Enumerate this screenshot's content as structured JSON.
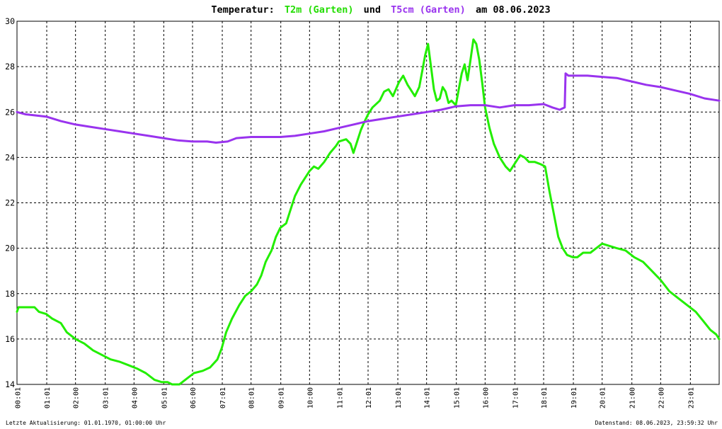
{
  "chart_data": {
    "type": "line",
    "title": {
      "prefix": "Temperatur:",
      "series1": "T2m (Garten)",
      "mid": "und",
      "series2": "T5cm (Garten)",
      "suffix": "am 08.06.2023"
    },
    "xlabel": "",
    "ylabel": "",
    "ylim": [
      14,
      30
    ],
    "xlim": [
      0,
      24
    ],
    "x_unit": "hours",
    "yticks": [
      14,
      16,
      18,
      20,
      22,
      24,
      26,
      28,
      30
    ],
    "xticks": [
      {
        "t": 0.0167,
        "label": "00:01"
      },
      {
        "t": 1.0167,
        "label": "01:01"
      },
      {
        "t": 2.0,
        "label": "02:00"
      },
      {
        "t": 3.0167,
        "label": "03:01"
      },
      {
        "t": 4.0,
        "label": "04:00"
      },
      {
        "t": 5.0167,
        "label": "05:01"
      },
      {
        "t": 6.0,
        "label": "06:00"
      },
      {
        "t": 7.0167,
        "label": "07:01"
      },
      {
        "t": 8.0,
        "label": "08:01"
      },
      {
        "t": 9.0167,
        "label": "09:01"
      },
      {
        "t": 10.0,
        "label": "10:00"
      },
      {
        "t": 11.0167,
        "label": "11:01"
      },
      {
        "t": 12.0,
        "label": "12:01"
      },
      {
        "t": 13.0167,
        "label": "13:01"
      },
      {
        "t": 14.0,
        "label": "14:01"
      },
      {
        "t": 15.0167,
        "label": "15:01"
      },
      {
        "t": 16.0,
        "label": "16:00"
      },
      {
        "t": 17.0167,
        "label": "17:01"
      },
      {
        "t": 18.0,
        "label": "18:01"
      },
      {
        "t": 19.0167,
        "label": "19:01"
      },
      {
        "t": 20.0,
        "label": "20:01"
      },
      {
        "t": 21.0167,
        "label": "21:00"
      },
      {
        "t": 22.0,
        "label": "22:00"
      },
      {
        "t": 23.0167,
        "label": "23:01"
      }
    ],
    "grid": true,
    "series": [
      {
        "name": "T2m (Garten)",
        "color": "#22ee00",
        "points": [
          [
            0.0,
            17.2
          ],
          [
            0.05,
            17.4
          ],
          [
            0.6,
            17.4
          ],
          [
            0.75,
            17.2
          ],
          [
            1.0,
            17.1
          ],
          [
            1.2,
            16.9
          ],
          [
            1.5,
            16.7
          ],
          [
            1.7,
            16.3
          ],
          [
            2.0,
            16.0
          ],
          [
            2.3,
            15.8
          ],
          [
            2.6,
            15.5
          ],
          [
            2.9,
            15.3
          ],
          [
            3.2,
            15.1
          ],
          [
            3.5,
            15.0
          ],
          [
            3.8,
            14.85
          ],
          [
            4.1,
            14.7
          ],
          [
            4.4,
            14.5
          ],
          [
            4.7,
            14.2
          ],
          [
            4.95,
            14.1
          ],
          [
            5.15,
            14.1
          ],
          [
            5.3,
            14.0
          ],
          [
            5.55,
            14.0
          ],
          [
            5.75,
            14.2
          ],
          [
            6.05,
            14.5
          ],
          [
            6.35,
            14.6
          ],
          [
            6.6,
            14.75
          ],
          [
            6.85,
            15.1
          ],
          [
            7.0,
            15.6
          ],
          [
            7.15,
            16.3
          ],
          [
            7.35,
            16.9
          ],
          [
            7.6,
            17.5
          ],
          [
            7.8,
            17.9
          ],
          [
            8.0,
            18.1
          ],
          [
            8.2,
            18.4
          ],
          [
            8.35,
            18.8
          ],
          [
            8.5,
            19.4
          ],
          [
            8.7,
            19.9
          ],
          [
            8.85,
            20.5
          ],
          [
            9.0,
            20.9
          ],
          [
            9.2,
            21.1
          ],
          [
            9.35,
            21.7
          ],
          [
            9.5,
            22.3
          ],
          [
            9.7,
            22.8
          ],
          [
            9.85,
            23.1
          ],
          [
            10.0,
            23.4
          ],
          [
            10.15,
            23.6
          ],
          [
            10.3,
            23.5
          ],
          [
            10.5,
            23.8
          ],
          [
            10.7,
            24.2
          ],
          [
            10.9,
            24.5
          ],
          [
            11.0,
            24.7
          ],
          [
            11.25,
            24.8
          ],
          [
            11.4,
            24.6
          ],
          [
            11.5,
            24.2
          ],
          [
            11.6,
            24.6
          ],
          [
            11.75,
            25.2
          ],
          [
            11.85,
            25.5
          ],
          [
            12.0,
            25.9
          ],
          [
            12.15,
            26.2
          ],
          [
            12.4,
            26.5
          ],
          [
            12.55,
            26.9
          ],
          [
            12.7,
            27.0
          ],
          [
            12.85,
            26.7
          ],
          [
            13.05,
            27.3
          ],
          [
            13.2,
            27.6
          ],
          [
            13.35,
            27.2
          ],
          [
            13.5,
            26.9
          ],
          [
            13.6,
            26.7
          ],
          [
            13.75,
            27.1
          ],
          [
            13.85,
            27.8
          ],
          [
            13.95,
            28.5
          ],
          [
            14.05,
            29.0
          ],
          [
            14.15,
            28.0
          ],
          [
            14.25,
            27.0
          ],
          [
            14.35,
            26.5
          ],
          [
            14.45,
            26.6
          ],
          [
            14.55,
            27.1
          ],
          [
            14.65,
            26.9
          ],
          [
            14.75,
            26.4
          ],
          [
            14.85,
            26.5
          ],
          [
            15.0,
            26.3
          ],
          [
            15.1,
            27.0
          ],
          [
            15.2,
            27.7
          ],
          [
            15.3,
            28.1
          ],
          [
            15.4,
            27.4
          ],
          [
            15.5,
            28.3
          ],
          [
            15.6,
            29.2
          ],
          [
            15.7,
            29.0
          ],
          [
            15.8,
            28.3
          ],
          [
            15.9,
            27.3
          ],
          [
            16.0,
            26.2
          ],
          [
            16.15,
            25.3
          ],
          [
            16.3,
            24.6
          ],
          [
            16.5,
            24.0
          ],
          [
            16.7,
            23.6
          ],
          [
            16.85,
            23.4
          ],
          [
            17.05,
            23.8
          ],
          [
            17.2,
            24.1
          ],
          [
            17.35,
            24.0
          ],
          [
            17.5,
            23.8
          ],
          [
            17.7,
            23.8
          ],
          [
            17.9,
            23.7
          ],
          [
            18.05,
            23.6
          ],
          [
            18.2,
            22.5
          ],
          [
            18.35,
            21.5
          ],
          [
            18.5,
            20.5
          ],
          [
            18.65,
            20.0
          ],
          [
            18.8,
            19.7
          ],
          [
            19.0,
            19.6
          ],
          [
            19.15,
            19.6
          ],
          [
            19.35,
            19.8
          ],
          [
            19.6,
            19.8
          ],
          [
            19.8,
            20.0
          ],
          [
            20.0,
            20.2
          ],
          [
            20.25,
            20.1
          ],
          [
            20.5,
            20.0
          ],
          [
            20.8,
            19.9
          ],
          [
            21.1,
            19.6
          ],
          [
            21.4,
            19.4
          ],
          [
            21.7,
            19.0
          ],
          [
            22.0,
            18.6
          ],
          [
            22.3,
            18.1
          ],
          [
            22.6,
            17.8
          ],
          [
            22.9,
            17.5
          ],
          [
            23.2,
            17.2
          ],
          [
            23.45,
            16.8
          ],
          [
            23.7,
            16.4
          ],
          [
            23.9,
            16.2
          ],
          [
            24.0,
            16.0
          ]
        ]
      },
      {
        "name": "T5cm (Garten)",
        "color": "#9933ee",
        "points": [
          [
            0.0,
            26.0
          ],
          [
            0.3,
            25.9
          ],
          [
            1.0,
            25.8
          ],
          [
            1.5,
            25.6
          ],
          [
            2.0,
            25.45
          ],
          [
            2.5,
            25.35
          ],
          [
            3.0,
            25.25
          ],
          [
            3.5,
            25.15
          ],
          [
            4.0,
            25.05
          ],
          [
            4.5,
            24.95
          ],
          [
            5.0,
            24.85
          ],
          [
            5.5,
            24.75
          ],
          [
            6.0,
            24.7
          ],
          [
            6.5,
            24.7
          ],
          [
            6.8,
            24.65
          ],
          [
            7.2,
            24.7
          ],
          [
            7.5,
            24.85
          ],
          [
            8.0,
            24.9
          ],
          [
            8.5,
            24.9
          ],
          [
            9.0,
            24.9
          ],
          [
            9.5,
            24.95
          ],
          [
            10.0,
            25.05
          ],
          [
            10.5,
            25.15
          ],
          [
            11.0,
            25.3
          ],
          [
            11.5,
            25.45
          ],
          [
            12.0,
            25.6
          ],
          [
            12.5,
            25.7
          ],
          [
            13.0,
            25.8
          ],
          [
            13.5,
            25.9
          ],
          [
            14.0,
            26.0
          ],
          [
            14.5,
            26.1
          ],
          [
            15.0,
            26.25
          ],
          [
            15.5,
            26.3
          ],
          [
            16.0,
            26.3
          ],
          [
            16.5,
            26.2
          ],
          [
            17.0,
            26.3
          ],
          [
            17.5,
            26.3
          ],
          [
            18.0,
            26.35
          ],
          [
            18.3,
            26.2
          ],
          [
            18.55,
            26.1
          ],
          [
            18.72,
            26.2
          ],
          [
            18.75,
            27.7
          ],
          [
            18.85,
            27.6
          ],
          [
            19.5,
            27.6
          ],
          [
            20.0,
            27.55
          ],
          [
            20.5,
            27.5
          ],
          [
            21.0,
            27.35
          ],
          [
            21.5,
            27.2
          ],
          [
            22.0,
            27.1
          ],
          [
            22.5,
            26.95
          ],
          [
            23.0,
            26.8
          ],
          [
            23.5,
            26.6
          ],
          [
            24.0,
            26.5
          ]
        ]
      }
    ]
  },
  "footer": {
    "left": "Letzte Aktualisierung: 01.01.1970, 01:00:00 Uhr",
    "right": "Datenstand: 08.06.2023, 23:59:32 Uhr"
  }
}
